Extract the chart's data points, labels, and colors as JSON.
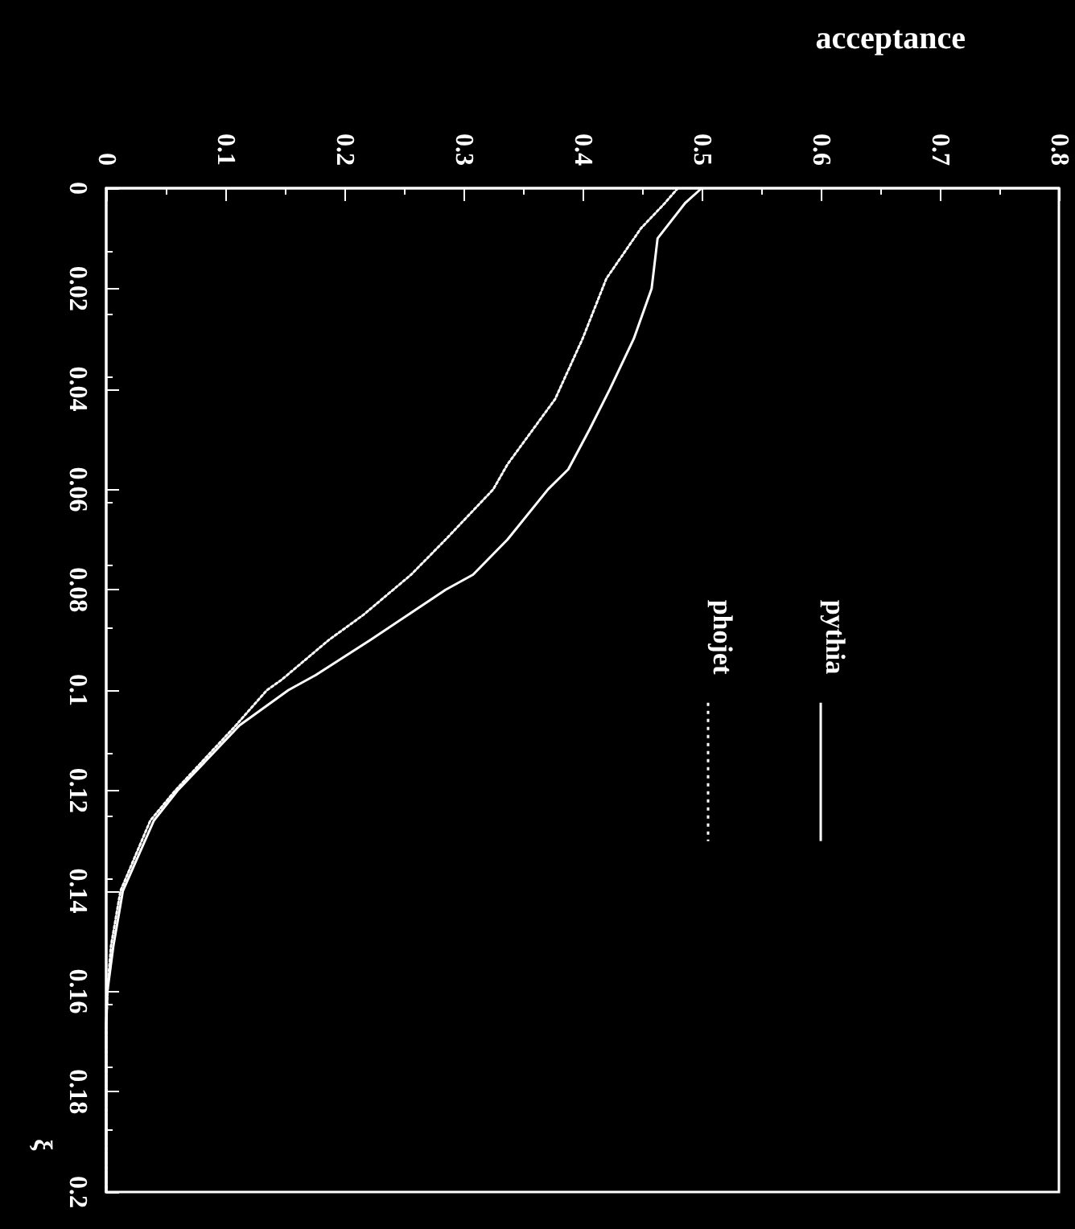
{
  "chart_data": {
    "type": "line",
    "xlabel": "acceptance",
    "ylabel": "ξ",
    "xlim": [
      0,
      0.8
    ],
    "xticks": [
      0,
      0.1,
      0.2,
      0.3,
      0.4,
      0.5,
      0.6,
      0.7,
      0.8
    ],
    "ylim": [
      0.2,
      0
    ],
    "yticks": [
      0,
      0.02,
      0.04,
      0.06,
      0.08,
      0.1,
      0.12,
      0.14,
      0.16,
      0.18,
      0.2
    ],
    "grid": false,
    "legend": "right",
    "marker": "none",
    "series": [
      {
        "name": "pythia",
        "color": "#ffffff",
        "line_style": "solid",
        "x": [
          0.5,
          0.486,
          0.463,
          0.458,
          0.443,
          0.423,
          0.406,
          0.388,
          0.371,
          0.337,
          0.308,
          0.285,
          0.222,
          0.176,
          0.153,
          0.112,
          0.06,
          0.04,
          0.014,
          0.006,
          0.001,
          0,
          0
        ],
        "values": [
          0,
          0.003,
          0.01,
          0.02,
          0.03,
          0.04,
          0.048,
          0.056,
          0.06,
          0.07,
          0.077,
          0.08,
          0.09,
          0.097,
          0.1,
          0.107,
          0.12,
          0.126,
          0.14,
          0.151,
          0.16,
          0.167,
          0.2
        ]
      },
      {
        "name": "phojet",
        "color": "#ffffff",
        "line_style": "dotted",
        "x": [
          0.48,
          0.469,
          0.449,
          0.42,
          0.4,
          0.377,
          0.337,
          0.325,
          0.285,
          0.256,
          0.216,
          0.187,
          0.147,
          0.135,
          0.109,
          0.058,
          0.037,
          0.012,
          0.004,
          0.001,
          0,
          0
        ],
        "values": [
          0,
          0.003,
          0.008,
          0.018,
          0.03,
          0.042,
          0.055,
          0.06,
          0.07,
          0.077,
          0.085,
          0.09,
          0.098,
          0.1,
          0.107,
          0.12,
          0.126,
          0.14,
          0.151,
          0.16,
          0.167,
          0.2
        ]
      }
    ]
  }
}
